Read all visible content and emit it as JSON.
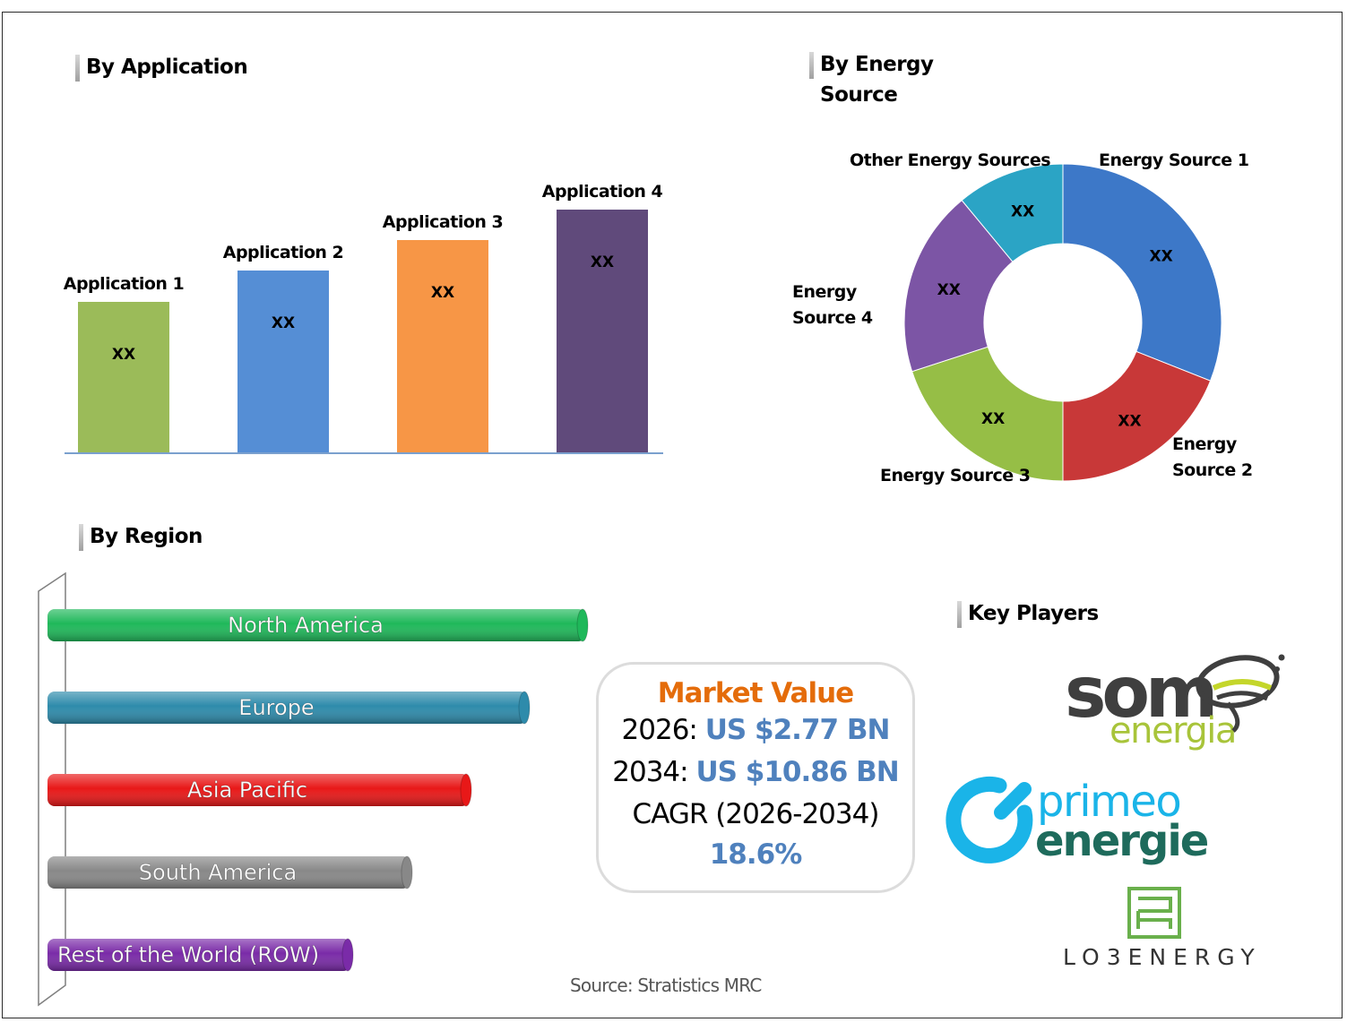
{
  "titles": {
    "application": "By Application",
    "energy_source_1": "By Energy",
    "energy_source_2": "Source",
    "region": "By Region",
    "key_players": "Key Players"
  },
  "chart_data": [
    {
      "type": "bar",
      "title": "By Application",
      "categories": [
        "Application 1",
        "Application 2",
        "Application 3",
        "Application 4"
      ],
      "values": [
        168,
        203,
        237,
        271
      ],
      "value_labels": [
        "XX",
        "XX",
        "XX",
        "XX"
      ],
      "colors": [
        "#9bbb59",
        "#558ed5",
        "#f79646",
        "#604a7b"
      ]
    },
    {
      "type": "pie",
      "subtype": "donut",
      "title": "By Energy Source",
      "categories": [
        "Energy Source 1",
        "Energy Source 2",
        "Energy Source 3",
        "Energy Source 4",
        "Other Energy Sources"
      ],
      "display_labels": [
        [
          "Energy Source 1"
        ],
        [
          "Energy",
          "Source 2"
        ],
        [
          "Energy Source 3"
        ],
        [
          "Energy",
          "Source 4"
        ],
        [
          "Other Energy Sources"
        ]
      ],
      "values": [
        31,
        19,
        20,
        19,
        11
      ],
      "value_labels": [
        "XX",
        "XX",
        "XX",
        "XX",
        "XX"
      ],
      "colors": [
        "#3d78c8",
        "#c83838",
        "#96be46",
        "#7c55a5",
        "#2ba4c5"
      ]
    },
    {
      "type": "bar",
      "orientation": "horizontal",
      "title": "By Region",
      "categories": [
        "North America",
        "Europe",
        "Asia Pacific",
        "South America",
        "Rest of the World (ROW)"
      ],
      "values": [
        600,
        535,
        470,
        404,
        338
      ],
      "colors": [
        "#1fb85a",
        "#2e8bab",
        "#e81818",
        "#888888",
        "#7a2ba8"
      ]
    }
  ],
  "market": {
    "title": "Market Value",
    "year1": "2026:",
    "value1": "US $2.77 BN",
    "year2": "2034:",
    "value2": "US $10.86 BN",
    "cagr_label": "CAGR (2026-2034)",
    "cagr_value": "18.6%"
  },
  "key_players": [
    "som energia",
    "primeo energie",
    "LO3 ENERGY"
  ],
  "logos": {
    "som_1": "som",
    "som_2": "energia",
    "primeo_1": "primeo",
    "primeo_2": "energie",
    "lo3": "LO3ENERGY"
  },
  "source": "Source: Stratistics MRC"
}
